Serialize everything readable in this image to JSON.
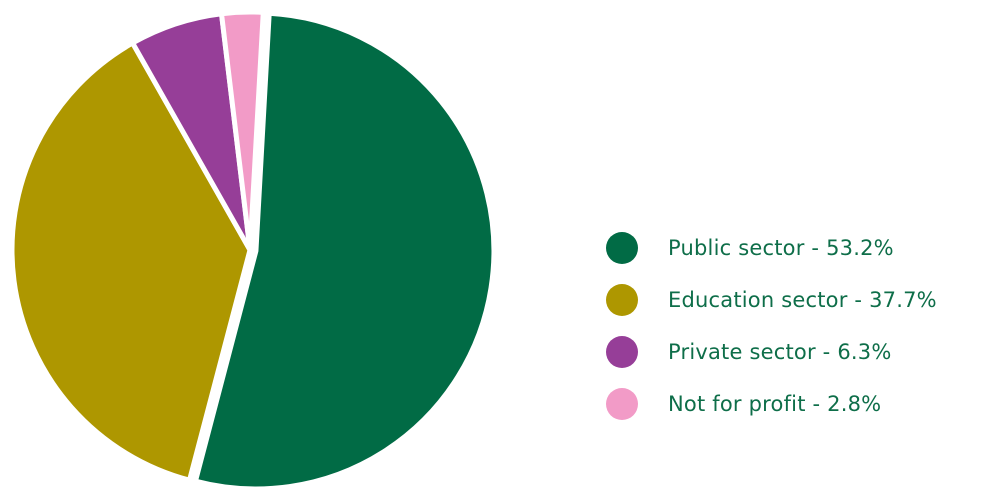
{
  "chart_data": {
    "type": "pie",
    "slices": [
      {
        "name": "Public sector",
        "value": 53.2,
        "color": "#016b45"
      },
      {
        "name": "Education sector",
        "value": 37.7,
        "color": "#ae9700"
      },
      {
        "name": "Private sector",
        "value": 6.3,
        "color": "#963e98"
      },
      {
        "name": "Not for profit",
        "value": 2.8,
        "color": "#f29bc7"
      }
    ],
    "start_angle_deg": 3.2,
    "exploded_slice": "Public sector",
    "legend_position": "right",
    "legend_text_color": "#0e6e49"
  },
  "legend": {
    "items": [
      {
        "label": "Public sector - 53.2%",
        "color": "#016b45"
      },
      {
        "label": "Education sector - 37.7%",
        "color": "#ae9700"
      },
      {
        "label": "Private sector - 6.3%",
        "color": "#963e98"
      },
      {
        "label": "Not for profit - 2.8%",
        "color": "#f29bc7"
      }
    ]
  }
}
